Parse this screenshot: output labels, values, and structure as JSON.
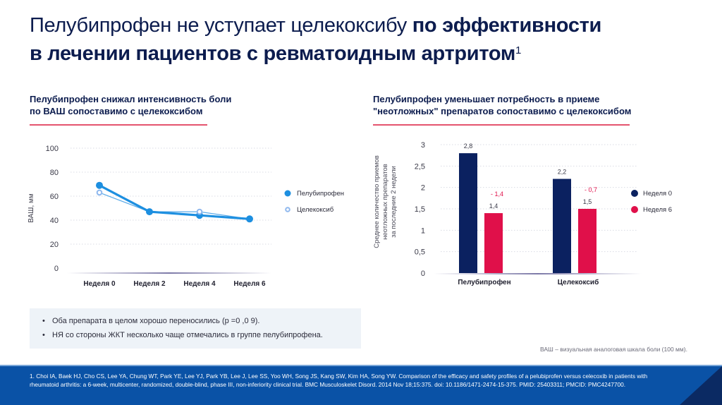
{
  "title": {
    "light": "Пелубипрофен не уступает целекоксибу ",
    "bold_1": "по эффективности",
    "bold_2": "в лечении пациентов с ревматоидным артритом",
    "sup": "1"
  },
  "left_section": {
    "heading_line1": "Пелубипрофен снижал интенсивность боли",
    "heading_line2": "по ВАШ сопоставимо с целекоксибом"
  },
  "right_section": {
    "heading_line1": "Пелубипрофен уменьшает потребность в приеме",
    "heading_line2": "\"неотложных\" препаратов сопоставимо с целекоксибом"
  },
  "colors": {
    "navy": "#0c1c4e",
    "line_blue": "#1d8fe0",
    "celecoxib_light": "#8fb8ee",
    "bar_week0": "#0b2160",
    "bar_week6": "#e0104a",
    "accent_rule": "#e4546e",
    "footer_blue": "#0a52a6"
  },
  "chart_data": [
    {
      "type": "line",
      "title": "Пелубипрофен снижал интенсивность боли по ВАШ сопоставимо с целекоксибом",
      "xlabel": "",
      "ylabel": "ВАШ, мм",
      "categories": [
        "Неделя 0",
        "Неделя 2",
        "Неделя 4",
        "Неделя 6"
      ],
      "yticks": [
        "0",
        "20",
        "40",
        "60",
        "80",
        "100"
      ],
      "ylim": [
        0,
        100
      ],
      "grid": true,
      "legend_position": "right",
      "series": [
        {
          "name": "Пелубипрофен",
          "values": [
            69,
            47,
            44,
            41
          ]
        },
        {
          "name": "Целекоксиб",
          "values": [
            63,
            47,
            47,
            41
          ]
        }
      ]
    },
    {
      "type": "bar",
      "title": "Пелубипрофен уменьшает потребность в приеме \"неотложных\" препаратов сопоставимо с целекоксибом",
      "xlabel": "",
      "ylabel": "Среднее количество приемов неотложных препаратов за последние 2 недели",
      "ylabel_lines": [
        "Среднее количество приемов",
        "неотложных препаратов",
        "за последние 2 недели"
      ],
      "categories": [
        "Пелубипрофен",
        "Целекоксиб"
      ],
      "yticks": [
        "0",
        "0,5",
        "1",
        "1,5",
        "2",
        "2,5",
        "3"
      ],
      "ylim": [
        0,
        3
      ],
      "grid": true,
      "legend_position": "right",
      "series": [
        {
          "name": "Неделя 0",
          "values": [
            2.8,
            2.2
          ],
          "labels": [
            "2,8",
            "2,2"
          ]
        },
        {
          "name": "Неделя 6",
          "values": [
            1.4,
            1.5
          ],
          "labels": [
            "1,4",
            "1,5"
          ]
        }
      ],
      "annotations": [
        "- 1,4",
        "- 0,7"
      ]
    }
  ],
  "notes": [
    "Оба препарата в целом хорошо переносились (р =0 ,0 9).",
    "НЯ со стороны ЖКТ несколько чаще отмечались в группе пелубипрофена."
  ],
  "vas_note": "ВАШ – визуальная аналоговая шкала боли (100 мм).",
  "footer": {
    "reference": "1. Choi IA, Baek HJ, Cho CS, Lee YA, Chung WT, Park YE, Lee YJ, Park YB, Lee J, Lee SS, Yoo WH, Song JS, Kang SW, Kim HA, Song YW. Comparison of the efficacy and safety profiles of a pelubiprofen versus celecoxib in patients with rheumatoid arthritis: a 6-week, multicenter, randomized, double-blind, phase III, non-inferiority clinical trial. BMC Musculoskelet Disord. 2014 Nov 18;15:375. doi: 10.1186/1471-2474-15-375. PMID: 25403311; PMCID: PMC4247700."
  }
}
